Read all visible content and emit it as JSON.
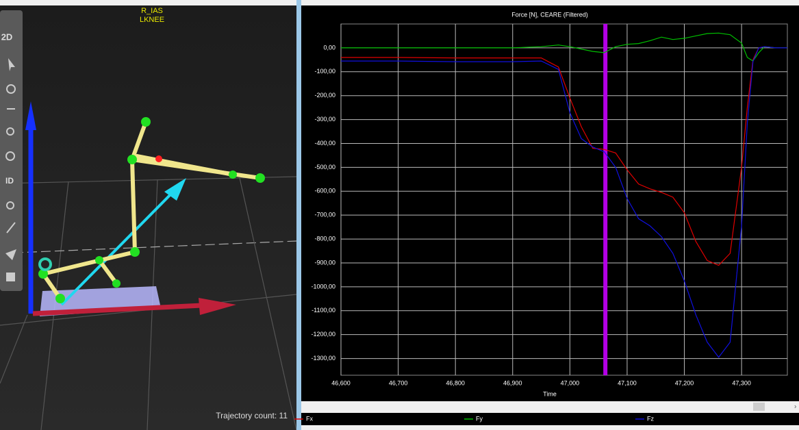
{
  "viewport": {
    "marker_labels": [
      "R_IAS",
      "LKNEE"
    ],
    "toolbar": [
      "2D",
      "ID"
    ],
    "status": "Trajectory count: 11"
  },
  "chart_data": {
    "type": "line",
    "title": "Force [N], CEARE (Filtered)",
    "x_label": "Time",
    "x": [
      46.6,
      46.7,
      46.8,
      46.9,
      46.95,
      46.98,
      47.0,
      47.02,
      47.04,
      47.06,
      47.08,
      47.1,
      47.12,
      47.14,
      47.16,
      47.18,
      47.2,
      47.22,
      47.24,
      47.26,
      47.28,
      47.3,
      47.31,
      47.32,
      47.33,
      47.34,
      47.36,
      47.38
    ],
    "series": [
      {
        "name": "Fx",
        "color": "#e00000",
        "values": [
          -40,
          -40,
          -42,
          -42,
          -42,
          -80,
          -210,
          -330,
          -420,
          -425,
          -440,
          -510,
          -570,
          -590,
          -605,
          -625,
          -690,
          -810,
          -890,
          -910,
          -860,
          -500,
          -250,
          -50,
          0,
          5,
          0,
          0
        ]
      },
      {
        "name": "Fy",
        "color": "#00c000",
        "values": [
          0,
          0,
          0,
          0,
          5,
          12,
          5,
          -5,
          -15,
          -20,
          5,
          15,
          18,
          30,
          45,
          35,
          40,
          50,
          60,
          62,
          55,
          20,
          -40,
          -55,
          -20,
          5,
          0,
          0
        ]
      },
      {
        "name": "Fz",
        "color": "#1010e0",
        "values": [
          -55,
          -55,
          -58,
          -58,
          -55,
          -90,
          -272,
          -380,
          -415,
          -435,
          -500,
          -630,
          -715,
          -745,
          -790,
          -860,
          -975,
          -1117,
          -1232,
          -1295,
          -1232,
          -745,
          -315,
          -57,
          0,
          5,
          0,
          0
        ]
      }
    ],
    "cursor": {
      "x": 47.062,
      "color": "#b400e6"
    },
    "xlim": [
      46.6,
      47.38
    ],
    "ylim": [
      -1370,
      100
    ],
    "xticks": [
      {
        "value": 46.6,
        "label": "46,600"
      },
      {
        "value": 46.7,
        "label": "46,700"
      },
      {
        "value": 46.8,
        "label": "46,800"
      },
      {
        "value": 46.9,
        "label": "46,900"
      },
      {
        "value": 47.0,
        "label": "47,000"
      },
      {
        "value": 47.1,
        "label": "47,100"
      },
      {
        "value": 47.2,
        "label": "47,200"
      },
      {
        "value": 47.3,
        "label": "47,300"
      }
    ],
    "yticks": [
      {
        "value": 0,
        "label": "0,00"
      },
      {
        "value": -100,
        "label": "-100,00"
      },
      {
        "value": -200,
        "label": "-200,00"
      },
      {
        "value": -300,
        "label": "-300,00"
      },
      {
        "value": -400,
        "label": "-400,00"
      },
      {
        "value": -500,
        "label": "-500,00"
      },
      {
        "value": -600,
        "label": "-600,00"
      },
      {
        "value": -700,
        "label": "-700,00"
      },
      {
        "value": -800,
        "label": "-800,00"
      },
      {
        "value": -900,
        "label": "-900,00"
      },
      {
        "value": -1000,
        "label": "-1000,00"
      },
      {
        "value": -1100,
        "label": "-1100,00"
      },
      {
        "value": -1200,
        "label": "-1200,00"
      },
      {
        "value": -1300,
        "label": "-1300,00"
      }
    ],
    "grid": true
  }
}
